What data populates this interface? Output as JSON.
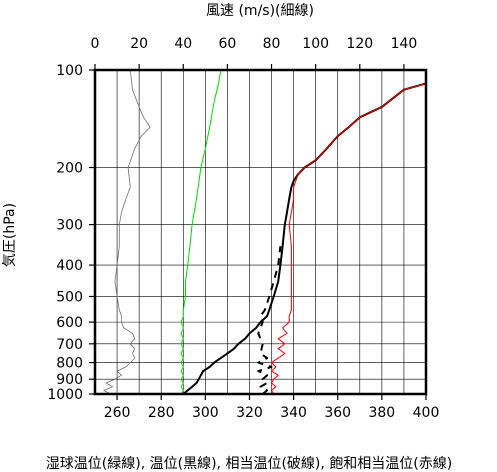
{
  "chart_data": {
    "type": "line",
    "top_axis_label": "風速 (m/s)(細線)",
    "left_axis_label": "気圧(hPa)",
    "bottom_axis_label": "湿球温位(緑線), 温位(黒線), 相当温位(破線), 飽和相当温位(赤線)",
    "x_bottom": {
      "range": [
        250,
        400
      ],
      "ticks": [
        260,
        280,
        300,
        320,
        340,
        360,
        380,
        400
      ]
    },
    "x_top": {
      "range": [
        0,
        150
      ],
      "ticks": [
        0,
        20,
        40,
        60,
        80,
        100,
        120,
        140
      ]
    },
    "y": {
      "scale": "log",
      "range": [
        1000,
        100
      ],
      "ticks": [
        100,
        200,
        300,
        400,
        500,
        600,
        700,
        800,
        900,
        1000
      ]
    },
    "grid": true,
    "series": [
      {
        "name": "湿球温位",
        "axis": "bottom",
        "color": "#00e000",
        "points": [
          [
            289,
            1000
          ],
          [
            290,
            975
          ],
          [
            289,
            950
          ],
          [
            290,
            925
          ],
          [
            289,
            900
          ],
          [
            290,
            875
          ],
          [
            289,
            850
          ],
          [
            290,
            825
          ],
          [
            289,
            800
          ],
          [
            290,
            775
          ],
          [
            289,
            750
          ],
          [
            290,
            725
          ],
          [
            289,
            700
          ],
          [
            290,
            675
          ],
          [
            289,
            650
          ],
          [
            290,
            625
          ],
          [
            289,
            600
          ],
          [
            290,
            575
          ],
          [
            290,
            550
          ],
          [
            291,
            500
          ],
          [
            291,
            450
          ],
          [
            292,
            400
          ],
          [
            293,
            350
          ],
          [
            294,
            300
          ],
          [
            296,
            250
          ],
          [
            298,
            200
          ],
          [
            300,
            175
          ],
          [
            302,
            150
          ],
          [
            304,
            125
          ],
          [
            306,
            110
          ],
          [
            307,
            100
          ]
        ]
      },
      {
        "name": "温位",
        "axis": "bottom",
        "color": "#000000",
        "points": [
          [
            290,
            1000
          ],
          [
            292,
            975
          ],
          [
            294,
            950
          ],
          [
            296,
            925
          ],
          [
            297,
            900
          ],
          [
            298,
            875
          ],
          [
            299,
            850
          ],
          [
            302,
            825
          ],
          [
            304,
            800
          ],
          [
            307,
            775
          ],
          [
            310,
            750
          ],
          [
            313,
            725
          ],
          [
            315,
            700
          ],
          [
            318,
            675
          ],
          [
            320,
            650
          ],
          [
            323,
            625
          ],
          [
            325,
            600
          ],
          [
            328,
            575
          ],
          [
            329,
            550
          ],
          [
            331,
            500
          ],
          [
            333,
            450
          ],
          [
            334,
            400
          ],
          [
            335,
            350
          ],
          [
            336,
            300
          ],
          [
            337,
            275
          ],
          [
            338,
            250
          ],
          [
            339,
            230
          ],
          [
            340,
            220
          ],
          [
            342,
            210
          ],
          [
            345,
            200
          ],
          [
            350,
            190
          ],
          [
            355,
            175
          ],
          [
            360,
            160
          ],
          [
            365,
            150
          ],
          [
            370,
            140
          ],
          [
            380,
            130
          ],
          [
            390,
            115
          ],
          [
            400,
            110
          ]
        ]
      },
      {
        "name": "相当温位",
        "axis": "bottom",
        "color": "#000000",
        "dash": true,
        "points": [
          [
            326,
            1000
          ],
          [
            328,
            975
          ],
          [
            325,
            950
          ],
          [
            328,
            925
          ],
          [
            326,
            900
          ],
          [
            328,
            875
          ],
          [
            324,
            850
          ],
          [
            330,
            825
          ],
          [
            324,
            800
          ],
          [
            328,
            775
          ],
          [
            325,
            750
          ],
          [
            326,
            700
          ],
          [
            324,
            650
          ],
          [
            326,
            600
          ],
          [
            325,
            575
          ],
          [
            327,
            550
          ],
          [
            329,
            500
          ],
          [
            331,
            450
          ],
          [
            333,
            400
          ],
          [
            334,
            350
          ]
        ]
      },
      {
        "name": "飽和相当温位",
        "axis": "bottom",
        "color": "#ff0000",
        "points": [
          [
            331,
            1000
          ],
          [
            330,
            975
          ],
          [
            332,
            950
          ],
          [
            330,
            925
          ],
          [
            331,
            900
          ],
          [
            333,
            875
          ],
          [
            330,
            850
          ],
          [
            332,
            825
          ],
          [
            330,
            800
          ],
          [
            333,
            775
          ],
          [
            336,
            750
          ],
          [
            333,
            725
          ],
          [
            336,
            700
          ],
          [
            333,
            675
          ],
          [
            337,
            650
          ],
          [
            335,
            625
          ],
          [
            338,
            600
          ],
          [
            338,
            575
          ],
          [
            339,
            550
          ],
          [
            339,
            500
          ],
          [
            339,
            450
          ],
          [
            339,
            400
          ],
          [
            339,
            350
          ],
          [
            338,
            300
          ],
          [
            339,
            275
          ],
          [
            340,
            250
          ],
          [
            340,
            230
          ],
          [
            341,
            220
          ],
          [
            342,
            210
          ],
          [
            345,
            200
          ],
          [
            350,
            190
          ],
          [
            355,
            175
          ],
          [
            360,
            160
          ],
          [
            365,
            150
          ],
          [
            370,
            140
          ],
          [
            380,
            130
          ],
          [
            390,
            115
          ],
          [
            400,
            110
          ]
        ]
      },
      {
        "name": "風速",
        "axis": "top",
        "color": "#707070",
        "thin": true,
        "points": [
          [
            7,
            1000
          ],
          [
            4,
            975
          ],
          [
            8,
            950
          ],
          [
            5,
            925
          ],
          [
            9,
            900
          ],
          [
            12,
            875
          ],
          [
            10,
            850
          ],
          [
            14,
            825
          ],
          [
            16,
            800
          ],
          [
            18,
            775
          ],
          [
            17,
            750
          ],
          [
            18,
            725
          ],
          [
            16,
            700
          ],
          [
            18,
            675
          ],
          [
            17,
            650
          ],
          [
            13,
            625
          ],
          [
            12,
            600
          ],
          [
            12,
            575
          ],
          [
            11,
            550
          ],
          [
            10,
            500
          ],
          [
            9,
            450
          ],
          [
            10,
            400
          ],
          [
            11,
            350
          ],
          [
            11,
            300
          ],
          [
            12,
            275
          ],
          [
            14,
            250
          ],
          [
            16,
            230
          ],
          [
            15,
            200
          ],
          [
            18,
            175
          ],
          [
            21,
            160
          ],
          [
            25,
            150
          ],
          [
            22,
            140
          ],
          [
            20,
            130
          ],
          [
            17,
            115
          ],
          [
            16,
            100
          ]
        ]
      }
    ]
  }
}
